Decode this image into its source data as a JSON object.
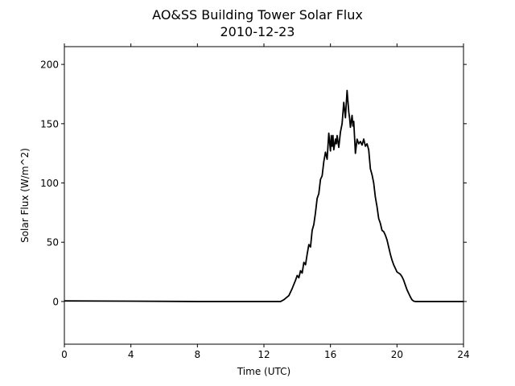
{
  "chart_data": {
    "type": "line",
    "title": "AO&SS Building Tower Solar Flux",
    "subtitle": "2010-12-23",
    "xlabel": "Time (UTC)",
    "ylabel": "Solar Flux (W/m^2)",
    "xlim": [
      0,
      24
    ],
    "ylim": [
      -36,
      215
    ],
    "xticks": [
      0,
      4,
      8,
      12,
      16,
      20,
      24
    ],
    "yticks": [
      0,
      50,
      100,
      150,
      200
    ],
    "grid": false,
    "line_color": "#000000",
    "series": [
      {
        "x": [
          0,
          4,
          8,
          10.5,
          12,
          13.0,
          13.2,
          13.5,
          13.7,
          13.9,
          14.0,
          14.1,
          14.2,
          14.3,
          14.4,
          14.5,
          14.6,
          14.7,
          14.8,
          14.9,
          15.0,
          15.1,
          15.2,
          15.3,
          15.4,
          15.5,
          15.6,
          15.7,
          15.8,
          15.9,
          16.0,
          16.05,
          16.1,
          16.15,
          16.2,
          16.3,
          16.35,
          16.4,
          16.5,
          16.6,
          16.7,
          16.8,
          16.9,
          17.0,
          17.1,
          17.15,
          17.2,
          17.3,
          17.35,
          17.4,
          17.5,
          17.6,
          17.7,
          17.8,
          17.9,
          18.0,
          18.1,
          18.2,
          18.3,
          18.4,
          18.5,
          18.6,
          18.7,
          18.8,
          18.9,
          19.0,
          19.1,
          19.2,
          19.3,
          19.4,
          19.5,
          19.6,
          19.7,
          19.8,
          19.9,
          20.0,
          20.1,
          20.2,
          20.3,
          20.4,
          20.5,
          20.6,
          20.7,
          20.8,
          20.9,
          21.0,
          21.1,
          21.2,
          21.3,
          21.4,
          21.5,
          21.6,
          21.7,
          21.8,
          21.9,
          22.0,
          22.1,
          22.2,
          22.3,
          22.4,
          22.5,
          22.6,
          22.8,
          23.0,
          24.0
        ],
        "y": [
          0.5,
          0.3,
          0,
          0,
          0,
          0,
          1.5,
          5,
          11,
          18,
          22,
          20,
          26,
          24,
          33,
          31,
          40,
          48,
          46,
          60,
          65,
          75,
          87,
          91,
          103,
          106,
          118,
          126,
          120,
          142,
          127,
          140,
          131,
          140,
          128,
          137,
          133,
          140,
          130,
          143,
          150,
          168,
          155,
          178,
          160,
          155,
          147,
          157,
          148,
          152,
          125,
          137,
          133,
          135,
          132,
          137,
          131,
          133,
          128,
          112,
          107,
          100,
          88,
          80,
          70,
          66,
          60,
          59,
          56,
          52,
          46,
          40,
          35,
          31,
          28,
          25,
          24,
          23,
          21,
          18,
          14,
          10,
          7,
          4,
          1.5,
          0.3,
          0,
          0,
          0,
          0,
          0,
          0,
          0,
          0,
          0,
          0,
          0,
          0,
          0,
          0,
          0,
          0,
          0,
          0,
          0
        ]
      }
    ]
  }
}
